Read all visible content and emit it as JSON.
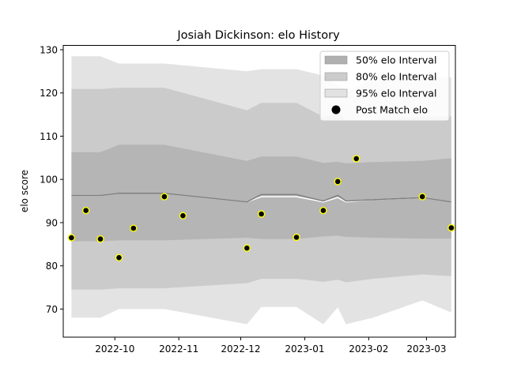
{
  "chart_data": {
    "type": "line",
    "title": "Josiah Dickinson: elo History",
    "xlabel": "",
    "ylabel": "elo score",
    "xlim": [
      "2022-09-06",
      "2023-03-15"
    ],
    "ylim": [
      63.5,
      131
    ],
    "grid": false,
    "legend_position": "top-right",
    "x_ticks": [
      {
        "date": "2022-10-01",
        "label": "2022-10"
      },
      {
        "date": "2022-11-01",
        "label": "2022-11"
      },
      {
        "date": "2022-12-01",
        "label": "2022-12"
      },
      {
        "date": "2023-01-01",
        "label": "2023-01"
      },
      {
        "date": "2023-02-01",
        "label": "2023-02"
      },
      {
        "date": "2023-03-01",
        "label": "2023-03"
      }
    ],
    "y_ticks": [
      70,
      80,
      90,
      100,
      110,
      120,
      130
    ],
    "x": [
      "2022-09-10",
      "2022-09-24",
      "2022-10-03",
      "2022-10-25",
      "2022-12-04",
      "2022-12-11",
      "2022-12-28",
      "2023-01-10",
      "2023-01-17",
      "2023-01-21",
      "2023-02-03",
      "2023-02-27",
      "2023-03-13"
    ],
    "mean": [
      96.3,
      96.3,
      96.8,
      96.8,
      94.8,
      96.5,
      96.5,
      95.0,
      96.3,
      95.0,
      95.3,
      95.8,
      94.8
    ],
    "line_lower": [
      96.3,
      96.3,
      96.8,
      96.8,
      94.8,
      96.0,
      96.0,
      94.8,
      95.8,
      94.8,
      95.3,
      95.8,
      94.8
    ],
    "band_50": {
      "lower": [
        85.7,
        85.7,
        85.9,
        85.9,
        86.5,
        86.2,
        86.2,
        86.8,
        87.0,
        86.7,
        86.5,
        86.3,
        86.3
      ],
      "upper": [
        106.3,
        106.3,
        108.0,
        108.0,
        104.3,
        105.3,
        105.3,
        103.8,
        104.1,
        103.7,
        104.0,
        104.3,
        104.9
      ]
    },
    "band_80": {
      "lower": [
        74.5,
        74.5,
        74.8,
        74.8,
        76.0,
        77.0,
        77.0,
        76.3,
        76.8,
        76.2,
        77.0,
        78.0,
        77.6
      ],
      "upper": [
        120.9,
        120.9,
        121.2,
        121.2,
        116.0,
        117.7,
        117.7,
        114.5,
        115.4,
        113.8,
        113.7,
        114.5,
        114.6
      ]
    },
    "band_95": {
      "lower": [
        68.0,
        68.0,
        70.0,
        70.0,
        66.5,
        70.5,
        70.5,
        66.5,
        70.4,
        66.5,
        68.0,
        72.0,
        69.2
      ],
      "upper": [
        128.5,
        128.5,
        126.8,
        126.8,
        125.0,
        125.5,
        125.5,
        124.0,
        122.0,
        120.5,
        123.0,
        123.5,
        123.6
      ]
    },
    "series": [
      {
        "name": "Post Match elo",
        "points": [
          {
            "x": "2022-09-10",
            "y": 86.5
          },
          {
            "x": "2022-09-17",
            "y": 92.8
          },
          {
            "x": "2022-09-24",
            "y": 86.2
          },
          {
            "x": "2022-10-03",
            "y": 81.9
          },
          {
            "x": "2022-10-10",
            "y": 88.7
          },
          {
            "x": "2022-10-25",
            "y": 96.0
          },
          {
            "x": "2022-11-03",
            "y": 91.6
          },
          {
            "x": "2022-12-04",
            "y": 84.1
          },
          {
            "x": "2022-12-11",
            "y": 92.0
          },
          {
            "x": "2022-12-28",
            "y": 86.6
          },
          {
            "x": "2023-01-10",
            "y": 92.8
          },
          {
            "x": "2023-01-17",
            "y": 99.5
          },
          {
            "x": "2023-01-26",
            "y": 104.8
          },
          {
            "x": "2023-02-27",
            "y": 96.0
          },
          {
            "x": "2023-03-13",
            "y": 88.8
          }
        ]
      }
    ],
    "legend": [
      {
        "label": "50% elo Interval",
        "swatch": "#b0b0b0"
      },
      {
        "label": "80% elo Interval",
        "swatch": "#cccccc"
      },
      {
        "label": "95% elo Interval",
        "swatch": "#e2e2e2"
      },
      {
        "label": "Post Match elo",
        "swatch": "#000000"
      }
    ],
    "colors": {
      "band_50": "#b5b5b5",
      "band_80": "#cbcbcb",
      "band_95": "#e3e3e3",
      "mean_line": "#808080",
      "point_fill": "#000000",
      "point_edge": "#ffff00"
    }
  }
}
